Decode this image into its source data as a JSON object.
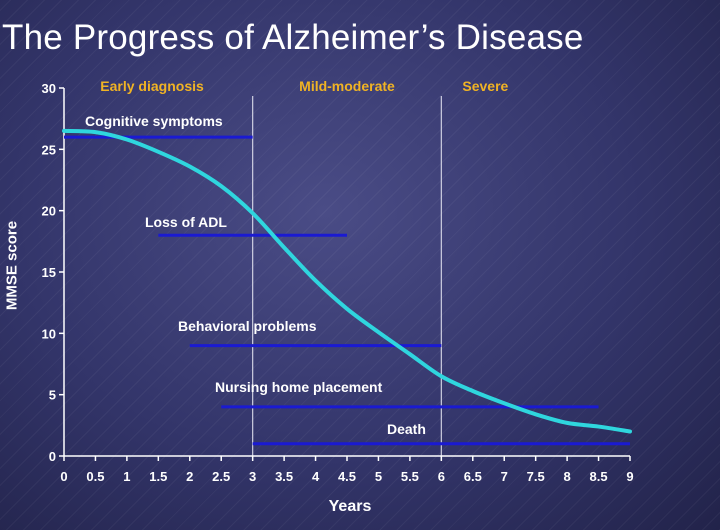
{
  "title": "The Progress of Alzheimer’s Disease",
  "colors": {
    "curve": "#2fd6de",
    "bar": "#1a1ad2",
    "phase_label": "#f0b324",
    "text": "#ffffff"
  },
  "chart_data": {
    "type": "line",
    "title": "The Progress of Alzheimer’s Disease",
    "xlabel": "Years",
    "ylabel": "MMSE score",
    "xlim": [
      0,
      9
    ],
    "ylim": [
      0,
      30
    ],
    "x_ticks": [
      "0",
      "0.5",
      "1",
      "1.5",
      "2",
      "2.5",
      "3",
      "3.5",
      "4",
      "4.5",
      "5",
      "5.5",
      "6",
      "6.5",
      "7",
      "7.5",
      "8",
      "8.5",
      "9"
    ],
    "y_ticks": [
      "0",
      "5",
      "10",
      "15",
      "20",
      "25",
      "30"
    ],
    "grid": false,
    "series": [
      {
        "x": [
          0,
          0.5,
          1,
          1.5,
          2,
          2.5,
          3,
          3.5,
          4,
          4.5,
          5,
          5.5,
          6,
          6.5,
          7,
          7.5,
          8,
          8.5,
          9
        ],
        "y": [
          26.5,
          26.4,
          25.8,
          24.8,
          23.6,
          22.0,
          19.8,
          17.0,
          14.3,
          12.0,
          10.1,
          8.3,
          6.5,
          5.3,
          4.3,
          3.4,
          2.7,
          2.4,
          2.0
        ]
      }
    ],
    "phases": [
      {
        "label": "Early diagnosis",
        "x_label": 1.4
      },
      {
        "label": "Mild-moderate",
        "x_label": 4.5,
        "boundary": 3
      },
      {
        "label": "Severe",
        "x_label": 6.7,
        "boundary": 6
      }
    ],
    "ranges": [
      {
        "label": "Cognitive symptoms",
        "y": 26,
        "x_start": 0,
        "x_end": 3
      },
      {
        "label": "Loss of ADL",
        "y": 18,
        "x_start": 1.5,
        "x_end": 4.5
      },
      {
        "label": "Behavioral problems",
        "y": 9,
        "x_start": 2,
        "x_end": 6
      },
      {
        "label": "Nursing home placement",
        "y": 4,
        "x_start": 2.5,
        "x_end": 8.5
      },
      {
        "label": "Death",
        "y": 1,
        "x_start": 3,
        "x_end": 9
      }
    ]
  }
}
